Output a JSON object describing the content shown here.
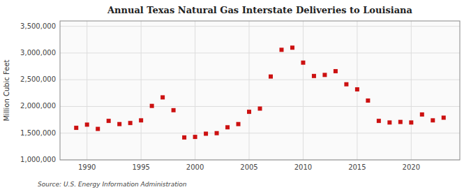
{
  "chart_data": {
    "type": "scatter",
    "title": "Annual Texas Natural Gas Interstate Deliveries to Louisiana",
    "y_label": "Million Cubic Feet",
    "annotations": [
      "Source: U.S. Energy Information Administration"
    ],
    "x": [
      1989,
      1990,
      1991,
      1992,
      1993,
      1994,
      1995,
      1996,
      1997,
      1998,
      1999,
      2000,
      2001,
      2002,
      2003,
      2004,
      2005,
      2006,
      2007,
      2008,
      2009,
      2010,
      2011,
      2012,
      2013,
      2014,
      2015,
      2016,
      2017,
      2018,
      2019,
      2020,
      2021,
      2022,
      2023
    ],
    "values": [
      1600000,
      1660000,
      1580000,
      1730000,
      1670000,
      1690000,
      1740000,
      2010000,
      2170000,
      1930000,
      1420000,
      1430000,
      1490000,
      1500000,
      1610000,
      1670000,
      1900000,
      1960000,
      2560000,
      3060000,
      3100000,
      2820000,
      2570000,
      2590000,
      2660000,
      2415000,
      2320000,
      2110000,
      1730000,
      1700000,
      1710000,
      1700000,
      1850000,
      1740000,
      1790000
    ],
    "color": "#cc1111",
    "marker": "square",
    "xlim": [
      1987.5,
      2024.5
    ],
    "ylim": [
      1000000,
      3600000
    ],
    "xticks": [
      1990,
      1995,
      2000,
      2005,
      2010,
      2015,
      2020
    ],
    "yticks": [
      {
        "value": 1000000,
        "label": "1,000,000"
      },
      {
        "value": 1500000,
        "label": "1,500,000"
      },
      {
        "value": 2000000,
        "label": "2,000,000"
      },
      {
        "value": 2500000,
        "label": "2,500,000"
      },
      {
        "value": 3000000,
        "label": "3,000,000"
      },
      {
        "value": 3500000,
        "label": "3,500,000"
      }
    ],
    "grid": true
  }
}
